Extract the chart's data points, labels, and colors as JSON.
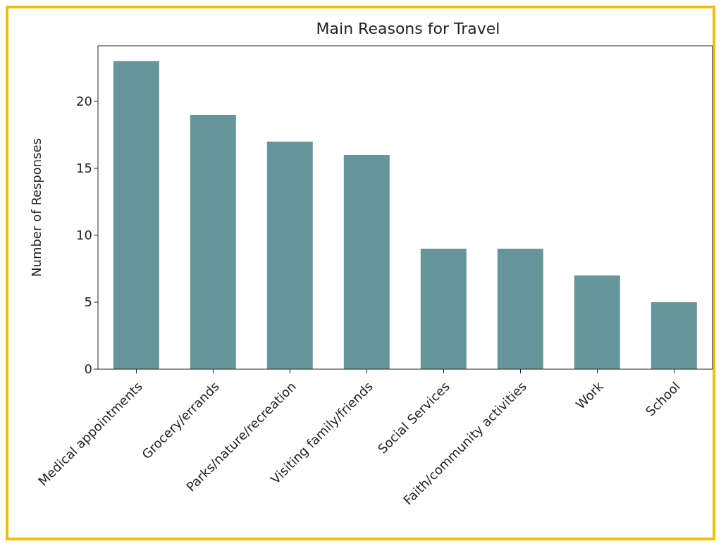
{
  "chart_data": {
    "type": "bar",
    "title": "Main Reasons for Travel",
    "ylabel": "Number of Responses",
    "categories": [
      "Medical appointments",
      "Grocery/errands",
      "Parks/nature/recreation",
      "Visiting family/friends",
      "Social Services",
      "Faith/community activities",
      "Work",
      "School"
    ],
    "values": [
      23,
      19,
      17,
      16,
      9,
      9,
      7,
      5
    ],
    "color": "#66969a",
    "ylim": [
      0,
      24.15
    ],
    "yticks": [
      0,
      5,
      10,
      15,
      20
    ],
    "grid": false,
    "legend": false
  }
}
